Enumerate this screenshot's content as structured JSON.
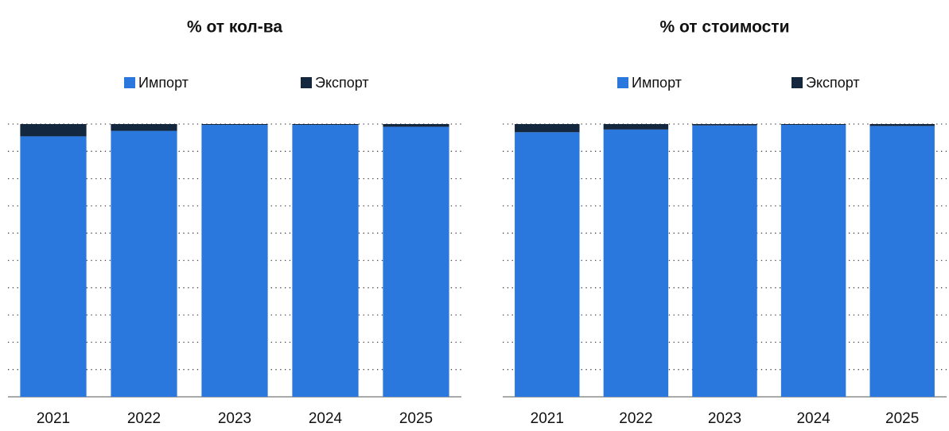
{
  "chart_data": [
    {
      "type": "bar",
      "title": "% от кол-ва",
      "categories": [
        "2021",
        "2022",
        "2023",
        "2024",
        "2025"
      ],
      "series": [
        {
          "name": "Импорт",
          "color": "#2a78de",
          "values": [
            95.5,
            97.5,
            99.7,
            99.7,
            99
          ]
        },
        {
          "name": "Экспорт",
          "color": "#13273f",
          "values": [
            4.5,
            2.5,
            0.3,
            0.3,
            1
          ]
        }
      ],
      "stacked": true,
      "ylim": [
        0,
        100
      ],
      "yticks": [
        0,
        10,
        20,
        30,
        40,
        50,
        60,
        70,
        80,
        90,
        100
      ],
      "grid": true
    },
    {
      "type": "bar",
      "title": "% от стоимости",
      "categories": [
        "2021",
        "2022",
        "2023",
        "2024",
        "2025"
      ],
      "series": [
        {
          "name": "Импорт",
          "color": "#2a78de",
          "values": [
            97,
            98,
            99.5,
            99.7,
            99.3
          ]
        },
        {
          "name": "Экспорт",
          "color": "#13273f",
          "values": [
            3,
            2,
            0.5,
            0.3,
            0.7
          ]
        }
      ],
      "stacked": true,
      "ylim": [
        0,
        100
      ],
      "yticks": [
        0,
        10,
        20,
        30,
        40,
        50,
        60,
        70,
        80,
        90,
        100
      ],
      "grid": true
    }
  ]
}
